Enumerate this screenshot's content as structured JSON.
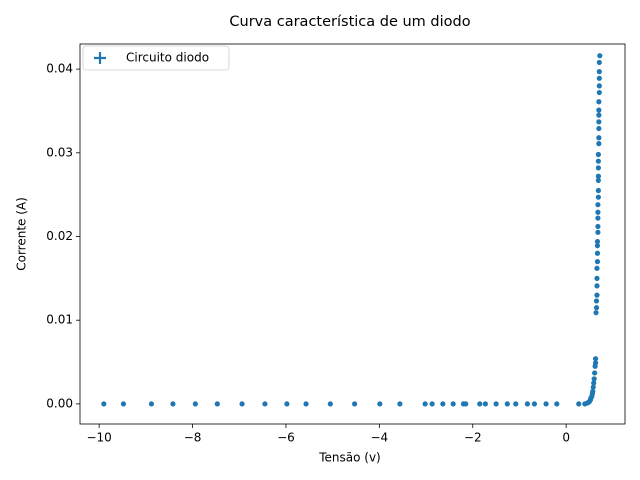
{
  "chart_data": {
    "type": "scatter",
    "title": "Curva característica de um diodo",
    "xlabel": "Tensão (v)",
    "ylabel": "Corrente (A)",
    "xlim": [
      -10.41,
      1.26
    ],
    "ylim": [
      -0.0024,
      0.043
    ],
    "xticks": [
      {
        "value": -10,
        "label": "−10"
      },
      {
        "value": -8,
        "label": "−8"
      },
      {
        "value": -6,
        "label": "−6"
      },
      {
        "value": -4,
        "label": "−4"
      },
      {
        "value": -2,
        "label": "−2"
      },
      0
    ],
    "yticks": [
      {
        "value": 0,
        "label": "0.00"
      },
      {
        "value": 0.01,
        "label": "0.01"
      },
      {
        "value": 0.02,
        "label": "0.02"
      },
      {
        "value": 0.03,
        "label": "0.03"
      },
      {
        "value": 0.04,
        "label": "0.04"
      }
    ],
    "legend": "upper left",
    "series": [
      {
        "name": "Circuito diodo",
        "color": "#1f77b4",
        "x": [
          -9.9,
          -9.48,
          -8.88,
          -8.42,
          -7.94,
          -7.47,
          -6.94,
          -6.45,
          -5.98,
          -5.57,
          -5.05,
          -4.53,
          -3.99,
          -3.56,
          -3.02,
          -2.87,
          -2.64,
          -2.42,
          -2.2,
          -2.15,
          -1.85,
          -1.73,
          -1.5,
          -1.26,
          -1.08,
          -0.83,
          -0.68,
          -0.43,
          -0.2,
          0.27,
          0.4,
          0.45,
          0.48,
          0.5,
          0.52,
          0.53,
          0.55,
          0.56,
          0.57,
          0.58,
          0.59,
          0.6,
          0.61,
          0.62,
          0.63,
          0.63,
          0.64,
          0.65,
          0.65,
          0.66,
          0.66,
          0.66,
          0.66,
          0.67,
          0.67,
          0.67,
          0.67,
          0.68,
          0.68,
          0.68,
          0.68,
          0.68,
          0.69,
          0.69,
          0.69,
          0.69,
          0.69,
          0.69,
          0.69,
          0.7,
          0.7,
          0.7,
          0.7,
          0.7,
          0.7,
          0.7,
          0.71,
          0.71,
          0.71,
          0.71,
          0.71,
          0.72
        ],
        "y": [
          0,
          0,
          0,
          0,
          0,
          0,
          0,
          0,
          0,
          0,
          0,
          0,
          0,
          0,
          0,
          0,
          0,
          0,
          0,
          0,
          0,
          0,
          0,
          0,
          0,
          0,
          0,
          0,
          0,
          0,
          0,
          0.0001,
          0.0002,
          0.0003,
          0.0005,
          0.0007,
          0.0009,
          0.0012,
          0.0015,
          0.002,
          0.0025,
          0.003,
          0.0037,
          0.0045,
          0.0049,
          0.0054,
          0.0109,
          0.0115,
          0.0123,
          0.013,
          0.0141,
          0.015,
          0.0162,
          0.017,
          0.018,
          0.0189,
          0.0194,
          0.0205,
          0.0212,
          0.0222,
          0.0229,
          0.0238,
          0.0247,
          0.0255,
          0.0267,
          0.0272,
          0.0282,
          0.029,
          0.0298,
          0.0311,
          0.0318,
          0.0329,
          0.0337,
          0.0345,
          0.0351,
          0.0361,
          0.0372,
          0.038,
          0.0389,
          0.0397,
          0.0408,
          0.0416
        ]
      }
    ]
  }
}
